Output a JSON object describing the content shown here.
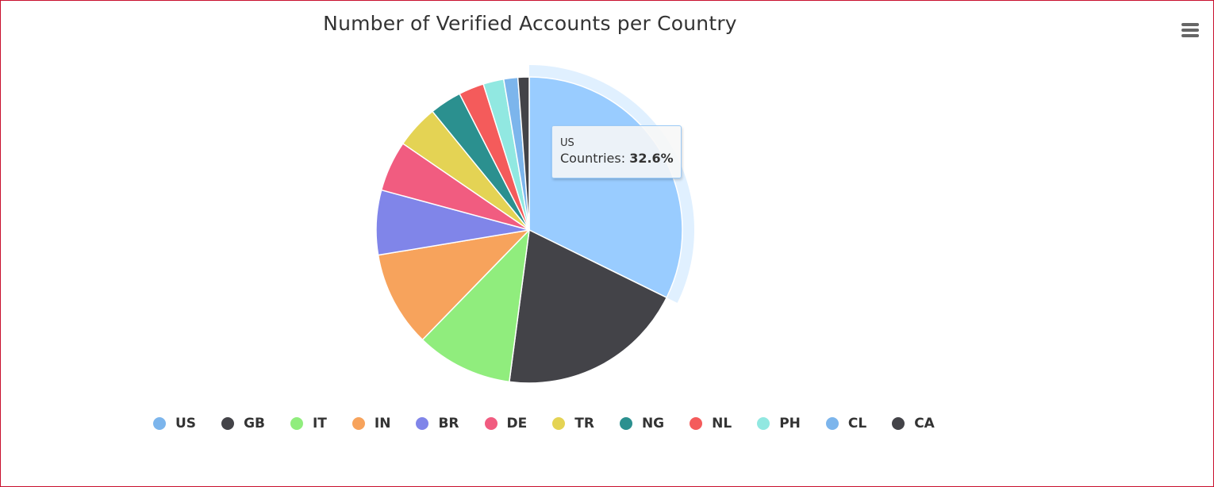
{
  "chart_data": {
    "type": "pie",
    "title": "Number of Verified Accounts per Country",
    "categories": [
      "US",
      "GB",
      "IT",
      "IN",
      "BR",
      "DE",
      "TR",
      "NG",
      "NL",
      "PH",
      "CL",
      "CA"
    ],
    "values": [
      32.6,
      20.0,
      10.3,
      10.2,
      6.9,
      5.4,
      4.6,
      3.4,
      2.7,
      2.2,
      1.5,
      1.2
    ],
    "unit": "%",
    "colors": [
      "#99ccff",
      "#434348",
      "#90ed7d",
      "#f7a35c",
      "#8085e9",
      "#f15c80",
      "#e4d354",
      "#2b908f",
      "#f45b5b",
      "#91e8e1",
      "#7cb5ec",
      "#434348"
    ],
    "legend_position": "bottom",
    "highlighted": "US"
  },
  "tooltip": {
    "header": "US",
    "series_label": "Countries: ",
    "value": "32.6%"
  },
  "menu": {
    "icon": "hamburger-menu-icon"
  }
}
